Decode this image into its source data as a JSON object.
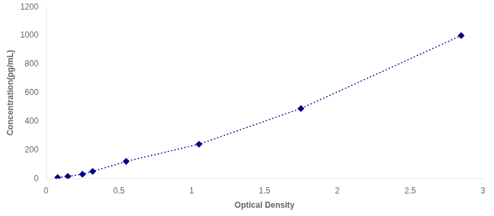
{
  "chart_data": {
    "type": "line",
    "x": [
      0.08,
      0.15,
      0.25,
      0.32,
      0.55,
      1.05,
      1.75,
      2.85
    ],
    "values": [
      7,
      15,
      30,
      50,
      120,
      240,
      490,
      1000
    ],
    "color": "#00008B",
    "marker": "diamond",
    "line_style": "dotted",
    "xlabel": "Optical Density",
    "ylabel": "Concentration(pg/mL)",
    "xlim": [
      0,
      3
    ],
    "ylim": [
      0,
      1200
    ],
    "xticks": [
      0,
      0.5,
      1,
      1.5,
      2,
      2.5,
      3
    ],
    "yticks": [
      0,
      200,
      400,
      600,
      800,
      1000,
      1200
    ],
    "grid": false,
    "tick_labels": true
  }
}
